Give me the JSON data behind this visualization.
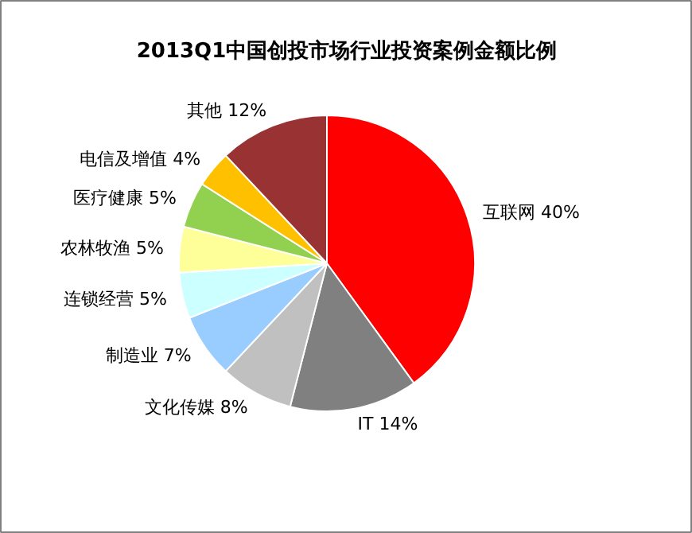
{
  "chart_data": {
    "type": "pie",
    "title": "2013Q1中国创投市场行业投资案例金额比例",
    "categories": [
      "互联网",
      "IT",
      "文化传媒",
      "制造业",
      "连锁经营",
      "农林牧渔",
      "医疗健康",
      "电信及增值",
      "其他"
    ],
    "values": [
      40,
      14,
      8,
      7,
      5,
      5,
      5,
      4,
      12
    ],
    "value_labels": [
      "40%",
      "14%",
      "8%",
      "7%",
      "5%",
      "5%",
      "5%",
      "4%",
      "12%"
    ],
    "colors": [
      "#ff0000",
      "#808080",
      "#c0c0c0",
      "#99ccff",
      "#ccffff",
      "#ffff99",
      "#92d050",
      "#ffc000",
      "#993333"
    ]
  }
}
